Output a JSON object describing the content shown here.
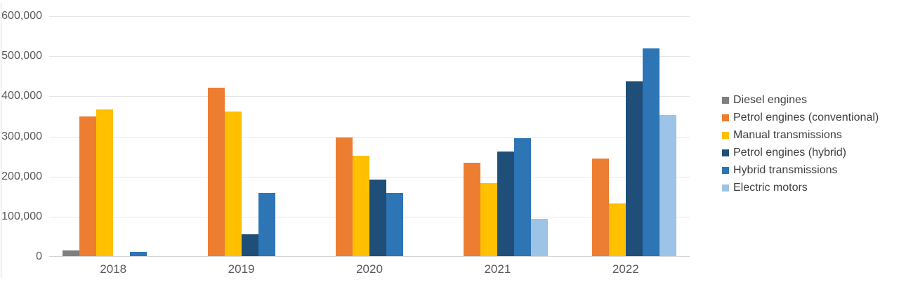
{
  "chart_data": {
    "type": "bar",
    "title": "",
    "xlabel": "",
    "ylabel": "",
    "categories": [
      "2018",
      "2019",
      "2020",
      "2021",
      "2022"
    ],
    "series": [
      {
        "name": "Diesel engines",
        "color": "#7F7F7F",
        "values": [
          14000,
          0,
          0,
          0,
          0
        ]
      },
      {
        "name": "Petrol engines (conventional)",
        "color": "#ED7D31",
        "values": [
          348000,
          420000,
          296000,
          232000,
          243000
        ]
      },
      {
        "name": "Manual transmissions",
        "color": "#FFC000",
        "values": [
          365000,
          360000,
          251000,
          182000,
          132000
        ]
      },
      {
        "name": "Petrol engines (hybrid)",
        "color": "#1F4E79",
        "values": [
          0,
          54000,
          190000,
          260000,
          435000
        ]
      },
      {
        "name": "Hybrid transmissions",
        "color": "#2E75B6",
        "values": [
          10000,
          158000,
          158000,
          294000,
          517000
        ]
      },
      {
        "name": "Electric motors",
        "color": "#9DC3E6",
        "values": [
          0,
          0,
          0,
          92000,
          352000
        ]
      }
    ],
    "y_axis": {
      "min": 0,
      "max": 600000,
      "step": 100000,
      "tick_labels": [
        "600,000",
        "500,000",
        "400,000",
        "300,000",
        "200,000",
        "100,000",
        "0"
      ]
    },
    "legend": {
      "position": "right",
      "entries": [
        "Diesel engines",
        "Petrol engines (conventional)",
        "Manual transmissions",
        "Petrol engines (hybrid)",
        "Hybrid transmissions",
        "Electric motors"
      ]
    },
    "grid": true,
    "colors": {
      "background": "#FFFFFF",
      "gridline": "#E6E6E6",
      "axis_line": "#D2D2D2",
      "tick_text": "#595959",
      "legend_text": "#404040"
    }
  }
}
